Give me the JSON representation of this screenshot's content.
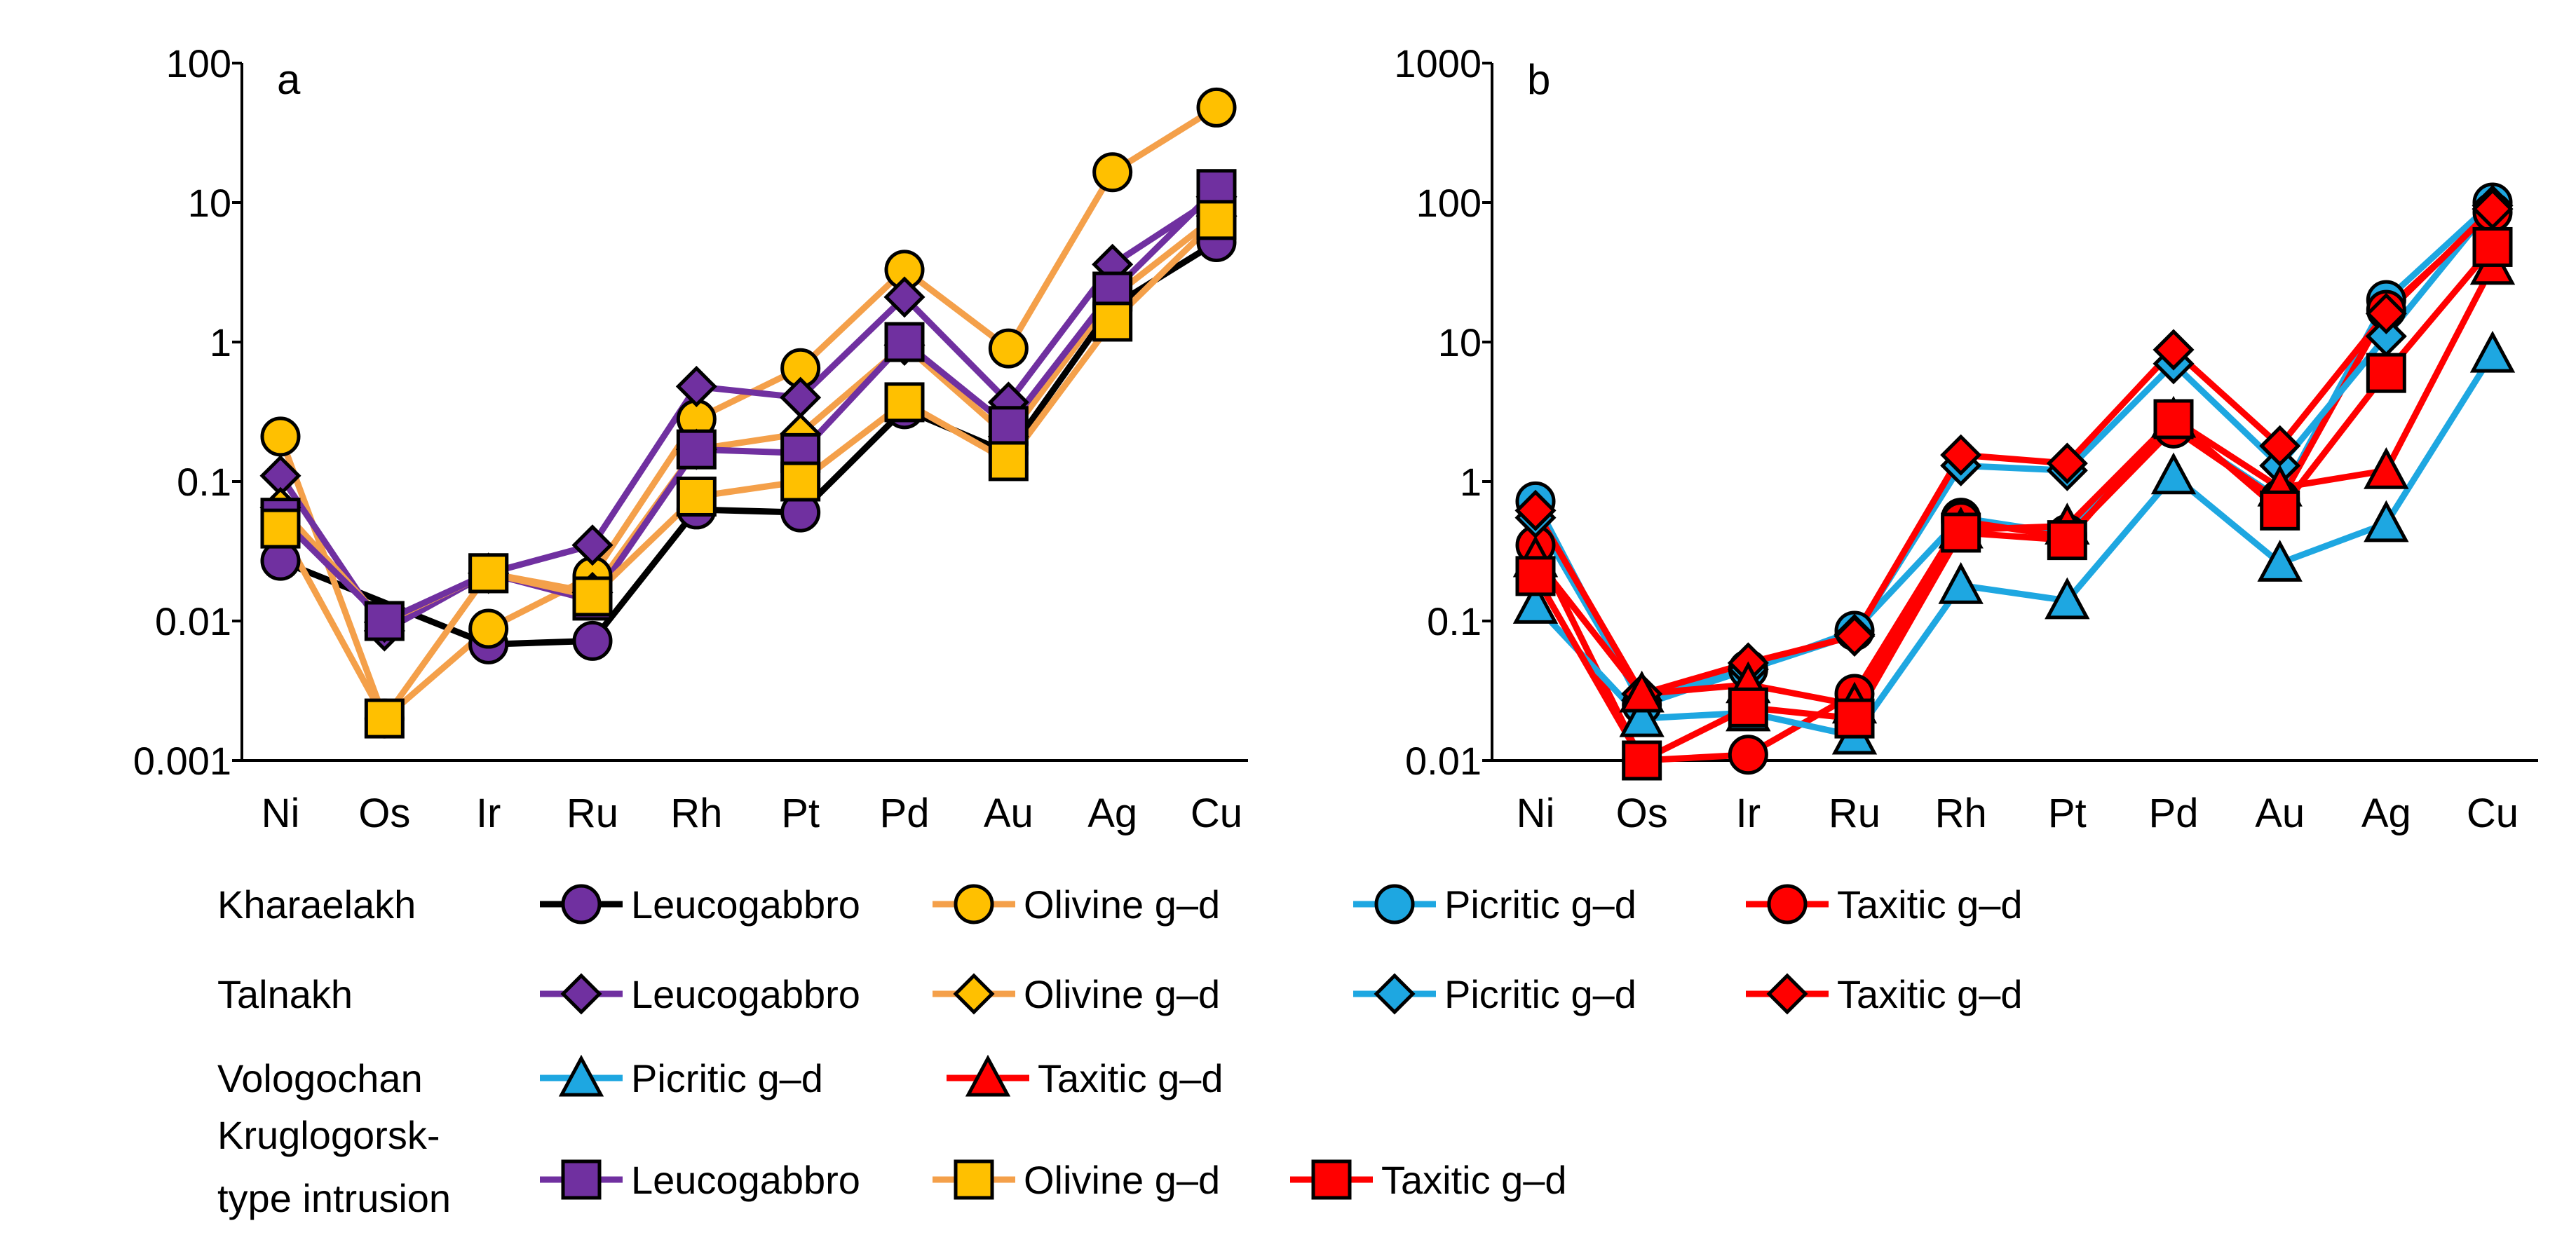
{
  "chart_data": [
    {
      "type": "line",
      "panel_label": "a",
      "title": "",
      "xlabel": "",
      "ylabel": "",
      "categories": [
        "Ni",
        "Os",
        "Ir",
        "Ru",
        "Rh",
        "Pt",
        "Pd",
        "Au",
        "Ag",
        "Cu"
      ],
      "y_scale": "log",
      "ylim": [
        0.001,
        100
      ],
      "y_ticks": [
        "0.001",
        "0.01",
        "0.1",
        "1",
        "10",
        "100"
      ],
      "grid": false,
      "series": [
        {
          "name": "Leucogabbro",
          "group": "Kharaelakh",
          "line": "black",
          "marker": "circle",
          "fill": "purple",
          "values": [
            0.027,
            null,
            0.0068,
            0.0072,
            0.063,
            0.06,
            0.33,
            0.16,
            1.8,
            5.2
          ]
        },
        {
          "name": "Olivine g–d",
          "group": "Kharaelakh",
          "line": "orange",
          "marker": "circle",
          "fill": "gold",
          "values": [
            0.21,
            0.002,
            0.0088,
            0.021,
            0.28,
            0.65,
            3.3,
            0.9,
            16.5,
            48
          ]
        },
        {
          "name": "Leucogabbro",
          "group": "Talnakh",
          "line": "purple",
          "marker": "diamond",
          "fill": "purple",
          "values": [
            0.11,
            0.0085,
            0.022,
            0.035,
            0.48,
            0.4,
            2.1,
            0.37,
            3.6,
            11
          ]
        },
        {
          "name": "Olivine g–d",
          "group": "Talnakh",
          "line": "orange",
          "marker": "diamond",
          "fill": "gold",
          "values": [
            0.065,
            0.0098,
            0.022,
            0.016,
            0.17,
            0.22,
            0.95,
            0.21,
            2.1,
            8
          ]
        },
        {
          "name": "Leucogabbro",
          "group": "Kruglogorsk-type intrusion",
          "line": "purple",
          "marker": "square",
          "fill": "purple",
          "values": [
            0.055,
            0.01,
            0.022,
            0.014,
            0.17,
            0.16,
            1.0,
            0.25,
            2.3,
            12.5
          ]
        },
        {
          "name": "Olivine g–d",
          "group": "Kruglogorsk-type intrusion",
          "line": "orange",
          "marker": "square",
          "fill": "gold",
          "values": [
            0.046,
            0.002,
            0.022,
            0.015,
            0.078,
            0.1,
            0.37,
            0.14,
            1.4,
            7.5
          ]
        }
      ]
    },
    {
      "type": "line",
      "panel_label": "b",
      "title": "",
      "xlabel": "",
      "ylabel": "",
      "categories": [
        "Ni",
        "Os",
        "Ir",
        "Ru",
        "Rh",
        "Pt",
        "Pd",
        "Au",
        "Ag",
        "Cu"
      ],
      "y_scale": "log",
      "ylim": [
        0.01,
        1000
      ],
      "y_ticks": [
        "0.01",
        "0.1",
        "1",
        "10",
        "100",
        "1000"
      ],
      "grid": false,
      "series": [
        {
          "name": "Picritic g–d",
          "group": "Kharaelakh",
          "line": "skyblue",
          "marker": "circle",
          "fill": "skyblue",
          "values": [
            0.72,
            0.025,
            0.045,
            0.085,
            0.55,
            0.42,
            2.4,
            0.75,
            20,
            100
          ]
        },
        {
          "name": "Taxitic g–d",
          "group": "Kharaelakh",
          "line": "red",
          "marker": "circle",
          "fill": "red",
          "values": [
            0.35,
            0.01,
            0.011,
            0.03,
            0.52,
            0.4,
            2.4,
            0.72,
            17,
            85
          ]
        },
        {
          "name": "Picritic g–d",
          "group": "Talnakh",
          "line": "skyblue",
          "marker": "diamond",
          "fill": "skyblue",
          "values": [
            0.55,
            0.027,
            0.045,
            0.08,
            1.3,
            1.2,
            7.0,
            1.3,
            11,
            95
          ]
        },
        {
          "name": "Taxitic g–d",
          "group": "Talnakh",
          "line": "red",
          "marker": "diamond",
          "fill": "red",
          "values": [
            0.62,
            0.03,
            0.05,
            0.078,
            1.55,
            1.35,
            8.8,
            1.8,
            16,
            90
          ]
        },
        {
          "name": "Picritic g–d",
          "group": "Vologochan",
          "line": "skyblue",
          "marker": "triangle",
          "fill": "skyblue",
          "values": [
            0.13,
            0.02,
            0.022,
            0.015,
            0.18,
            0.14,
            1.1,
            0.26,
            0.5,
            8.2
          ]
        },
        {
          "name": "Taxitic g–d",
          "group": "Vologochan",
          "line": "red",
          "marker": "triangle",
          "fill": "red",
          "values": [
            0.28,
            0.03,
            0.035,
            0.025,
            0.45,
            0.48,
            2.8,
            0.9,
            1.2,
            35
          ]
        },
        {
          "name": "Taxitic g–d",
          "group": "Kruglogorsk-type intrusion",
          "line": "red",
          "marker": "square",
          "fill": "red",
          "values": [
            0.21,
            0.01,
            0.024,
            0.02,
            0.43,
            0.38,
            2.8,
            0.62,
            6.0,
            48
          ]
        }
      ]
    }
  ],
  "legend": {
    "rows": [
      {
        "group": [
          "Kharaelakh"
        ],
        "entries": [
          {
            "label": "Leucogabbro",
            "line": "black",
            "marker": "circle",
            "fill": "purple"
          },
          {
            "label": "Olivine g–d",
            "line": "orange",
            "marker": "circle",
            "fill": "gold"
          },
          {
            "label": "Picritic g–d",
            "line": "skyblue",
            "marker": "circle",
            "fill": "skyblue"
          },
          {
            "label": "Taxitic g–d",
            "line": "red",
            "marker": "circle",
            "fill": "red"
          }
        ]
      },
      {
        "group": [
          "Talnakh"
        ],
        "entries": [
          {
            "label": "Leucogabbro",
            "line": "purple",
            "marker": "diamond",
            "fill": "purple"
          },
          {
            "label": "Olivine g–d",
            "line": "orange",
            "marker": "diamond",
            "fill": "gold"
          },
          {
            "label": "Picritic g–d",
            "line": "skyblue",
            "marker": "diamond",
            "fill": "skyblue"
          },
          {
            "label": "Taxitic g–d",
            "line": "red",
            "marker": "diamond",
            "fill": "red"
          }
        ]
      },
      {
        "group": [
          "Vologochan"
        ],
        "entries": [
          {
            "label": "Picritic g–d",
            "line": "skyblue",
            "marker": "triangle",
            "fill": "skyblue"
          },
          {
            "label": "Taxitic g–d",
            "line": "red",
            "marker": "triangle",
            "fill": "red"
          }
        ]
      },
      {
        "group": [
          "Kruglogorsk-",
          "type intrusion"
        ],
        "entries": [
          {
            "label": "Leucogabbro",
            "line": "purple",
            "marker": "square",
            "fill": "purple"
          },
          {
            "label": "Olivine g–d",
            "line": "orange",
            "marker": "square",
            "fill": "gold"
          },
          {
            "label": "Taxitic g–d",
            "line": "red",
            "marker": "square",
            "fill": "red"
          }
        ]
      }
    ]
  },
  "colors": {
    "black": "#000000",
    "purple": "#7030A0",
    "orange": "#F4A04A",
    "gold": "#FFC000",
    "skyblue": "#1EA7E1",
    "red": "#FF0000",
    "axis": "#000000",
    "marker_edge": "#000000"
  }
}
